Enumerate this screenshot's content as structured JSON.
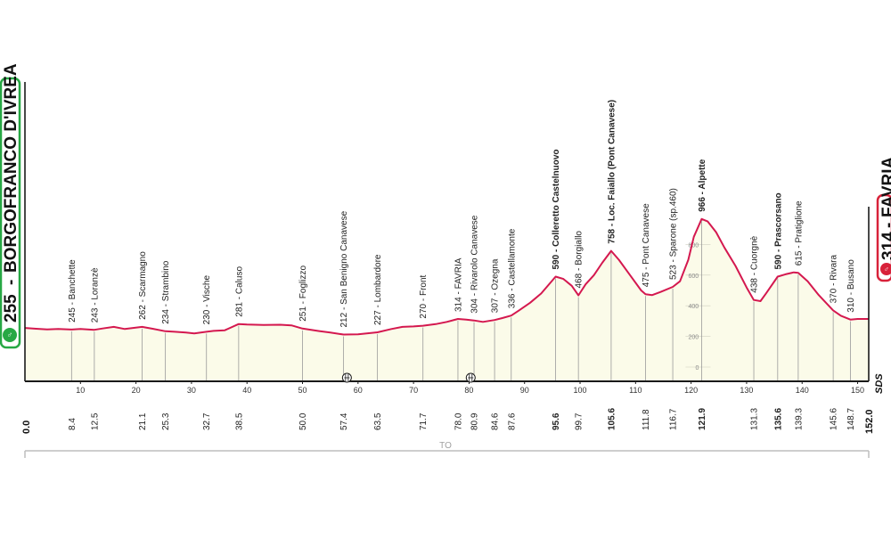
{
  "start": {
    "altitude": "255",
    "name": "BORGOFRANCO D'IVREA",
    "km": "0.0",
    "color": "#27a844"
  },
  "finish": {
    "altitude": "314",
    "name": "FAVRIA",
    "km": "152.0",
    "color": "#d8223a"
  },
  "bottom_label": "TO",
  "sds_label": "SDS",
  "chart_data": {
    "type": "area",
    "title": "",
    "xlabel": "",
    "ylabel": "",
    "xlim": [
      0,
      152
    ],
    "ylim": [
      -100,
      1000
    ],
    "line_color": "#d4184f",
    "fill_color": "#fbfbe9",
    "x_ticks": [
      10,
      20,
      30,
      40,
      50,
      60,
      70,
      80,
      90,
      100,
      110,
      120,
      130,
      140,
      150
    ],
    "y_ticks": [
      0,
      200,
      400,
      600,
      800
    ],
    "profile": [
      [
        0,
        255
      ],
      [
        2,
        250
      ],
      [
        4,
        246
      ],
      [
        6,
        248
      ],
      [
        8.4,
        245
      ],
      [
        10,
        248
      ],
      [
        12.5,
        243
      ],
      [
        14,
        252
      ],
      [
        16,
        262
      ],
      [
        18,
        248
      ],
      [
        21.1,
        262
      ],
      [
        23,
        250
      ],
      [
        25.3,
        234
      ],
      [
        27,
        230
      ],
      [
        29,
        225
      ],
      [
        30.5,
        220
      ],
      [
        32.7,
        230
      ],
      [
        34,
        236
      ],
      [
        36,
        240
      ],
      [
        38.5,
        281
      ],
      [
        40,
        278
      ],
      [
        43,
        275
      ],
      [
        46,
        276
      ],
      [
        48,
        272
      ],
      [
        50,
        251
      ],
      [
        53,
        235
      ],
      [
        55,
        225
      ],
      [
        57.4,
        212
      ],
      [
        60,
        214
      ],
      [
        63.5,
        227
      ],
      [
        66,
        248
      ],
      [
        68,
        262
      ],
      [
        70,
        265
      ],
      [
        71.7,
        270
      ],
      [
        74,
        280
      ],
      [
        76,
        295
      ],
      [
        78,
        314
      ],
      [
        79.5,
        310
      ],
      [
        80.9,
        304
      ],
      [
        82.5,
        295
      ],
      [
        84.6,
        307
      ],
      [
        86,
        320
      ],
      [
        87.6,
        336
      ],
      [
        89,
        370
      ],
      [
        91,
        420
      ],
      [
        93,
        480
      ],
      [
        95.6,
        590
      ],
      [
        97,
        575
      ],
      [
        98.5,
        530
      ],
      [
        99.7,
        468
      ],
      [
        101,
        540
      ],
      [
        102.5,
        600
      ],
      [
        104,
        680
      ],
      [
        105.6,
        758
      ],
      [
        107,
        700
      ],
      [
        109,
        600
      ],
      [
        111,
        500
      ],
      [
        111.8,
        475
      ],
      [
        113,
        470
      ],
      [
        114.5,
        490
      ],
      [
        116.7,
        523
      ],
      [
        118,
        560
      ],
      [
        119.5,
        700
      ],
      [
        120.5,
        850
      ],
      [
        121.9,
        966
      ],
      [
        123,
        950
      ],
      [
        124.5,
        880
      ],
      [
        126,
        780
      ],
      [
        128,
        660
      ],
      [
        130,
        520
      ],
      [
        131.3,
        438
      ],
      [
        132.5,
        430
      ],
      [
        133.5,
        480
      ],
      [
        135.6,
        590
      ],
      [
        137,
        605
      ],
      [
        138.5,
        618
      ],
      [
        139.3,
        615
      ],
      [
        141,
        560
      ],
      [
        143,
        470
      ],
      [
        145.6,
        370
      ],
      [
        147,
        335
      ],
      [
        148.7,
        310
      ],
      [
        150,
        314
      ],
      [
        152,
        314
      ]
    ],
    "points": [
      {
        "km": "8.4",
        "alt": "245",
        "name": "Banchette",
        "x": 8.4,
        "y": 245,
        "bold": false
      },
      {
        "km": "12.5",
        "alt": "243",
        "name": "Loranzè",
        "x": 12.5,
        "y": 243,
        "bold": false
      },
      {
        "km": "21.1",
        "alt": "262",
        "name": "Scarmagno",
        "x": 21.1,
        "y": 262,
        "bold": false
      },
      {
        "km": "25.3",
        "alt": "234",
        "name": "Strambino",
        "x": 25.3,
        "y": 234,
        "bold": false
      },
      {
        "km": "32.7",
        "alt": "230",
        "name": "Vische",
        "x": 32.7,
        "y": 230,
        "bold": false
      },
      {
        "km": "38.5",
        "alt": "281",
        "name": "Caluso",
        "x": 38.5,
        "y": 281,
        "bold": false
      },
      {
        "km": "50.0",
        "alt": "251",
        "name": "Foglizzo",
        "x": 50.0,
        "y": 251,
        "bold": false
      },
      {
        "km": "57.4",
        "alt": "212",
        "name": "San Benigno Canavese",
        "x": 57.4,
        "y": 212,
        "bold": false
      },
      {
        "km": "63.5",
        "alt": "227",
        "name": "Lombardore",
        "x": 63.5,
        "y": 227,
        "bold": false
      },
      {
        "km": "71.7",
        "alt": "270",
        "name": "Front",
        "x": 71.7,
        "y": 270,
        "bold": false
      },
      {
        "km": "78.0",
        "alt": "314",
        "name": "FAVRIA",
        "x": 78.0,
        "y": 314,
        "bold": false
      },
      {
        "km": "80.9",
        "alt": "304",
        "name": "Rivarolo Canavese",
        "x": 80.9,
        "y": 304,
        "bold": false
      },
      {
        "km": "84.6",
        "alt": "307",
        "name": "Ozegna",
        "x": 84.6,
        "y": 307,
        "bold": false
      },
      {
        "km": "87.6",
        "alt": "336",
        "name": "Castellamonte",
        "x": 87.6,
        "y": 336,
        "bold": false
      },
      {
        "km": "95.6",
        "alt": "590",
        "name": "Colleretto Castelnuovo",
        "x": 95.6,
        "y": 590,
        "bold": true
      },
      {
        "km": "99.7",
        "alt": "468",
        "name": "Borgiallo",
        "x": 99.7,
        "y": 468,
        "bold": false
      },
      {
        "km": "105.6",
        "alt": "758",
        "name": "Loc. Faiallo (Pont Canavese)",
        "x": 105.6,
        "y": 758,
        "bold": true
      },
      {
        "km": "111.8",
        "alt": "475",
        "name": "Pont Canavese",
        "x": 111.8,
        "y": 475,
        "bold": false
      },
      {
        "km": "116.7",
        "alt": "523",
        "name": "Sparone (sp.460)",
        "x": 116.7,
        "y": 523,
        "bold": false
      },
      {
        "km": "121.9",
        "alt": "966",
        "name": "Alpette",
        "x": 121.9,
        "y": 966,
        "bold": true
      },
      {
        "km": "131.3",
        "alt": "438",
        "name": "Cuorgnè",
        "x": 131.3,
        "y": 438,
        "bold": false
      },
      {
        "km": "135.6",
        "alt": "590",
        "name": "Prascorsano",
        "x": 135.6,
        "y": 590,
        "bold": true
      },
      {
        "km": "139.3",
        "alt": "615",
        "name": "Pratiglione",
        "x": 139.3,
        "y": 615,
        "bold": false
      },
      {
        "km": "145.6",
        "alt": "370",
        "name": "Rivara",
        "x": 145.6,
        "y": 370,
        "bold": false
      },
      {
        "km": "148.7",
        "alt": "310",
        "name": "Busano",
        "x": 148.7,
        "y": 310,
        "bold": false
      }
    ],
    "bridges_km": [
      58,
      80.3
    ]
  }
}
